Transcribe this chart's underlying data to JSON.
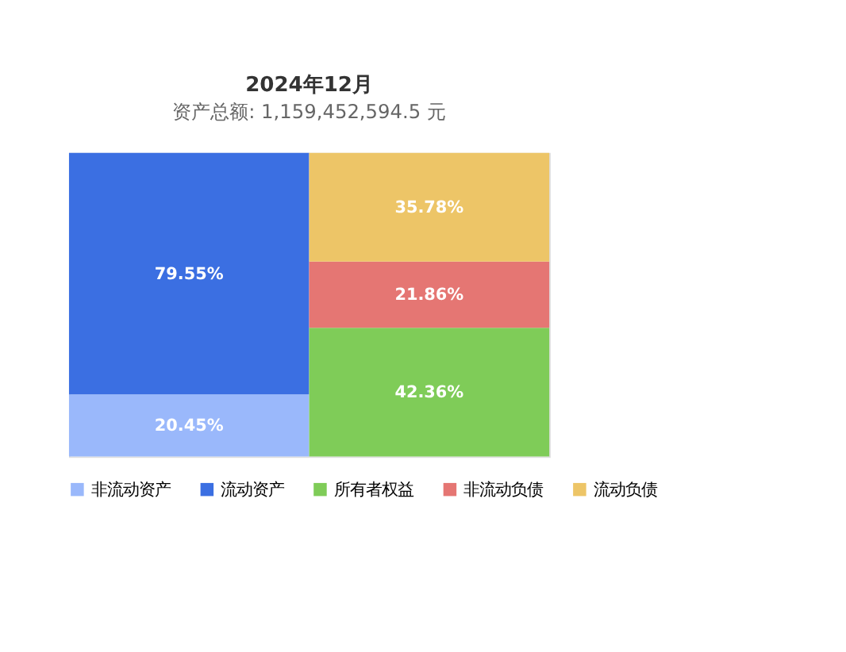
{
  "chart_data": {
    "type": "bar",
    "title": "2024年12月",
    "subtitle": "资产总额: 1,159,452,594.5 元",
    "categories": [
      null,
      null
    ],
    "stacked": true,
    "tick_labels": false,
    "grid": false,
    "legend": "bottom",
    "series": [
      {
        "name": "非流动资产",
        "color": "#9ab8fb",
        "values": [
          20.45,
          null
        ],
        "value_labels": [
          "20.45%",
          null
        ]
      },
      {
        "name": "流动资产",
        "color": "#3b6fe2",
        "values": [
          79.55,
          null
        ],
        "value_labels": [
          "79.55%",
          null
        ]
      },
      {
        "name": "所有者权益",
        "color": "#7fcc58",
        "values": [
          null,
          42.36
        ],
        "value_labels": [
          null,
          "42.36%"
        ]
      },
      {
        "name": "非流动负债",
        "color": "#e57673",
        "values": [
          null,
          21.86
        ],
        "value_labels": [
          null,
          "21.86%"
        ]
      },
      {
        "name": "流动负债",
        "color": "#edc567",
        "values": [
          null,
          35.78
        ],
        "value_labels": [
          null,
          "35.78%"
        ]
      }
    ]
  }
}
